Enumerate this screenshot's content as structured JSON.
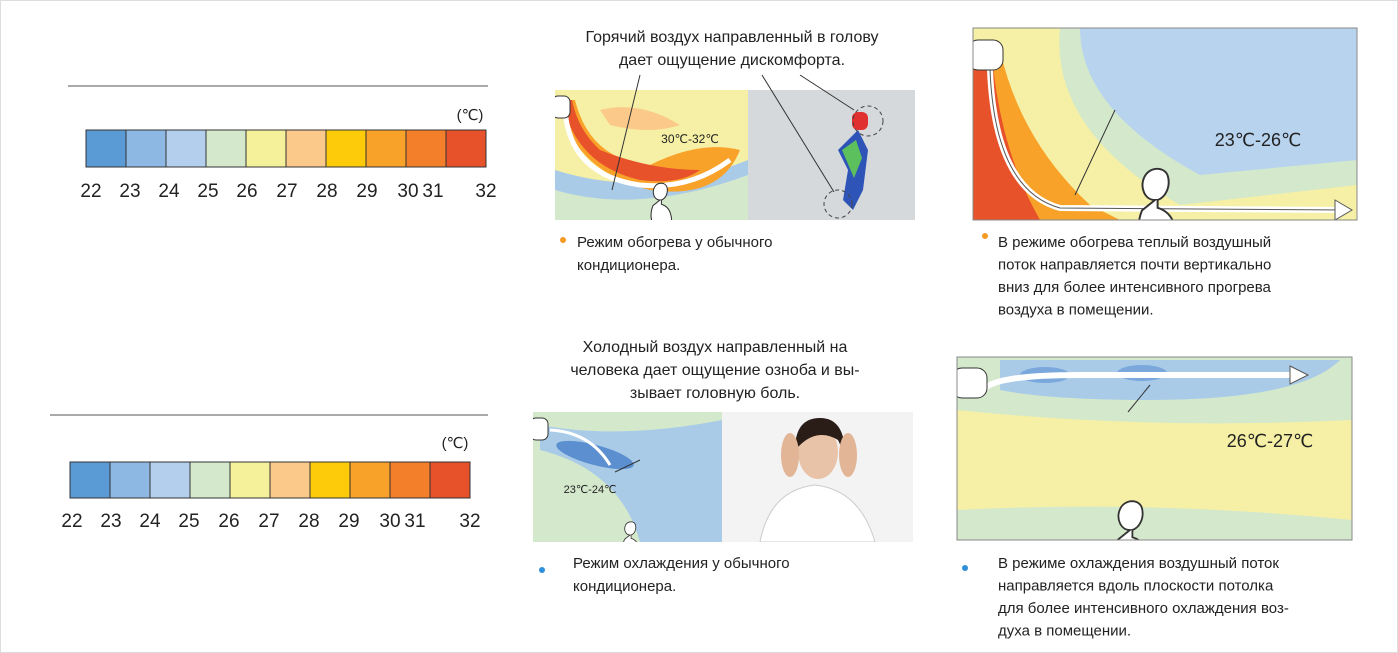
{
  "scales": [
    {
      "unit": "(℃)",
      "labels": [
        "22",
        "23",
        "24",
        "25",
        "26",
        "27",
        "28",
        "29",
        "30",
        "31",
        "32"
      ],
      "colors": [
        "#5b9bd5",
        "#8db8e4",
        "#b4cfee",
        "#d4e8cc",
        "#f4f19a",
        "#fbc98a",
        "#fecb0a",
        "#f9a22a",
        "#f47f2a",
        "#e8522a"
      ]
    },
    {
      "unit": "(℃)",
      "labels": [
        "22",
        "23",
        "24",
        "25",
        "26",
        "27",
        "28",
        "29",
        "30",
        "31",
        "32"
      ],
      "colors": [
        "#5b9bd5",
        "#8db8e4",
        "#b4cfee",
        "#d4e8cc",
        "#f4f19a",
        "#fbc98a",
        "#fecb0a",
        "#f9a22a",
        "#f47f2a",
        "#e8522a"
      ]
    }
  ],
  "heating": {
    "caption": [
      "Горячий воздух направленный в голову",
      "дает ощущение дискомфорта."
    ],
    "conventional": {
      "temperature": "30℃-32℃",
      "text": [
        "Режим обогрева у обычного",
        "кондиционера."
      ]
    },
    "improved": {
      "temperature": "23℃-26℃",
      "text": [
        "В режиме обогрева теплый воздушный",
        "поток направляется почти вертикально",
        "вниз для более интенсивного прогрева",
        "воздуха в помещении."
      ]
    }
  },
  "cooling": {
    "caption": [
      "Холодный воздух направленный на",
      "человека дает ощущение озноба и вы-",
      "зывает головную боль."
    ],
    "conventional": {
      "temperature": "23℃-24℃",
      "text": [
        "Режим охлаждения у обычного",
        "кондиционера."
      ]
    },
    "improved": {
      "temperature": "26℃-27℃",
      "text": [
        "В режиме охлаждения воздушный поток",
        "направляется вдоль плоскости потолка",
        "для более интенсивного охлаждения воз-",
        "духа в помещении."
      ]
    }
  }
}
